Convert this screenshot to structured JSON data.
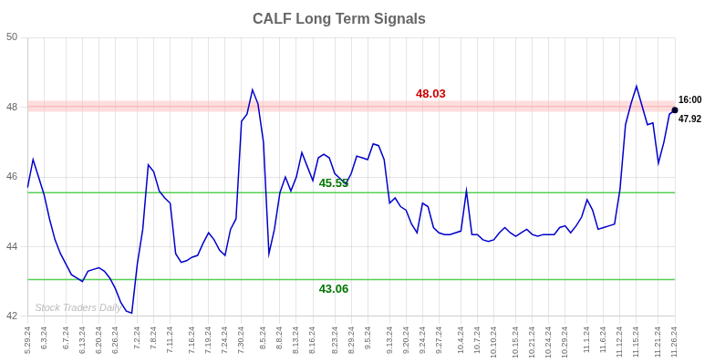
{
  "chart_data": {
    "type": "line",
    "title": "CALF Long Term Signals",
    "categories": [
      "5.29.24",
      null,
      null,
      "6.3.24",
      null,
      null,
      null,
      "6.7.24",
      null,
      null,
      "6.13.24",
      null,
      null,
      "6.20.24",
      null,
      null,
      "6.26.24",
      null,
      null,
      null,
      "7.2.24",
      null,
      null,
      "7.8.24",
      null,
      null,
      "7.11.24",
      null,
      null,
      null,
      "7.16.24",
      null,
      null,
      "7.19.24",
      null,
      null,
      "7.24.24",
      null,
      null,
      "7.30.24",
      null,
      null,
      null,
      "8.5.24",
      null,
      null,
      "8.8.24",
      null,
      null,
      "8.13.24",
      null,
      null,
      "8.16.24",
      null,
      null,
      null,
      "8.23.24",
      null,
      null,
      "8.29.24",
      null,
      null,
      "9.5.24",
      null,
      null,
      null,
      "9.13.24",
      null,
      null,
      "9.20.24",
      null,
      null,
      "9.24.24",
      null,
      null,
      "9.27.24",
      null,
      null,
      null,
      "10.4.24",
      null,
      null,
      "10.7.24",
      null,
      null,
      "10.10.24",
      null,
      null,
      null,
      "10.15.24",
      null,
      null,
      "10.21.24",
      null,
      null,
      "10.24.24",
      null,
      null,
      "10.29.24",
      null,
      null,
      null,
      "11.1.24",
      null,
      null,
      "11.6.24",
      null,
      null,
      "11.12.24",
      null,
      null,
      "11.15.24",
      null,
      null,
      null,
      "11.21.24",
      null,
      null,
      "11.26.24"
    ],
    "values": [
      45.7,
      46.5,
      46.0,
      45.5,
      44.8,
      44.2,
      43.8,
      43.5,
      43.2,
      43.1,
      43.0,
      43.3,
      43.35,
      43.4,
      43.3,
      43.1,
      42.8,
      42.4,
      42.15,
      42.1,
      43.5,
      44.5,
      46.35,
      46.15,
      45.6,
      45.4,
      45.25,
      43.8,
      43.55,
      43.6,
      43.7,
      43.75,
      44.1,
      44.4,
      44.2,
      43.9,
      43.75,
      44.5,
      44.8,
      47.6,
      47.8,
      48.5,
      48.1,
      47.0,
      43.8,
      44.5,
      45.55,
      46.0,
      45.6,
      46.0,
      46.7,
      46.3,
      45.9,
      46.55,
      46.65,
      46.55,
      46.1,
      45.95,
      45.8,
      46.1,
      46.6,
      46.55,
      46.5,
      46.95,
      46.9,
      46.5,
      45.25,
      45.4,
      45.15,
      45.05,
      44.65,
      44.4,
      45.25,
      45.15,
      44.55,
      44.4,
      44.35,
      44.35,
      44.4,
      44.45,
      45.6,
      44.35,
      44.35,
      44.2,
      44.15,
      44.2,
      44.4,
      44.55,
      44.4,
      44.3,
      44.4,
      44.5,
      44.35,
      44.3,
      44.35,
      44.35,
      44.35,
      44.55,
      44.6,
      44.4,
      44.6,
      44.85,
      45.35,
      45.05,
      44.5,
      44.55,
      44.6,
      44.65,
      45.65,
      47.5,
      48.1,
      48.6,
      48.05,
      47.5,
      47.55,
      46.4,
      47.0,
      47.8,
      47.92
    ],
    "color": "#0000cc",
    "ylim": [
      42,
      50
    ],
    "yticks": [
      42,
      44,
      46,
      48,
      50
    ],
    "grid": true,
    "lines": [
      {
        "y": 48.03,
        "color": "#ffbbbb",
        "label": "48.03",
        "label_color": "#cc0000"
      },
      {
        "y": 45.55,
        "color": "#44cc44",
        "label": "45.55",
        "label_color": "#007700"
      },
      {
        "y": 43.06,
        "color": "#44cc44",
        "label": "43.06",
        "label_color": "#007700"
      }
    ],
    "last_point": {
      "value": 47.92,
      "time": "16:00",
      "color": "#000033"
    },
    "watermark": "Stock Traders Daily"
  }
}
